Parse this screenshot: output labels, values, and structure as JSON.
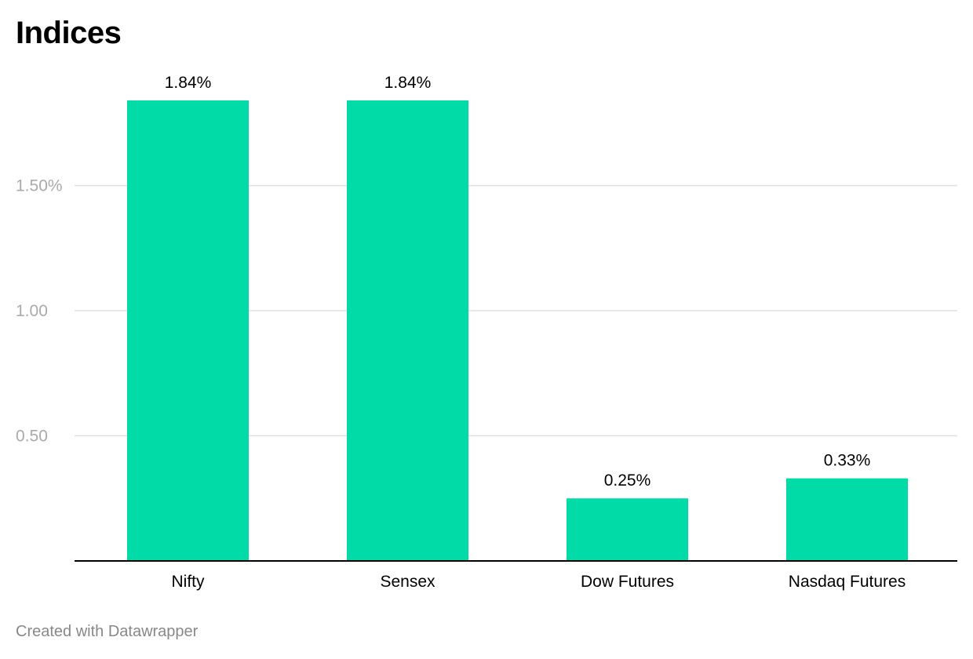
{
  "title": "Indices",
  "footer": "Created with Datawrapper",
  "chart_data": {
    "type": "bar",
    "categories": [
      "Nifty",
      "Sensex",
      "Dow Futures",
      "Nasdaq Futures"
    ],
    "values": [
      1.84,
      1.84,
      0.25,
      0.33
    ],
    "data_labels": [
      "1.84%",
      "1.84%",
      "0.25%",
      "0.33%"
    ],
    "yticks": [
      {
        "value": 0.5,
        "label": "0.50"
      },
      {
        "value": 1.0,
        "label": "1.00"
      },
      {
        "value": 1.5,
        "label": "1.50%"
      }
    ],
    "ylim": [
      0,
      1.84
    ],
    "grid": true,
    "legend": "none",
    "xlabel": "",
    "ylabel": "",
    "colors": {
      "bar": "#00dba8",
      "grid": "#e0e0e0",
      "axis": "#000000",
      "tick_label": "#aaaaaa",
      "text": "#000000"
    }
  }
}
